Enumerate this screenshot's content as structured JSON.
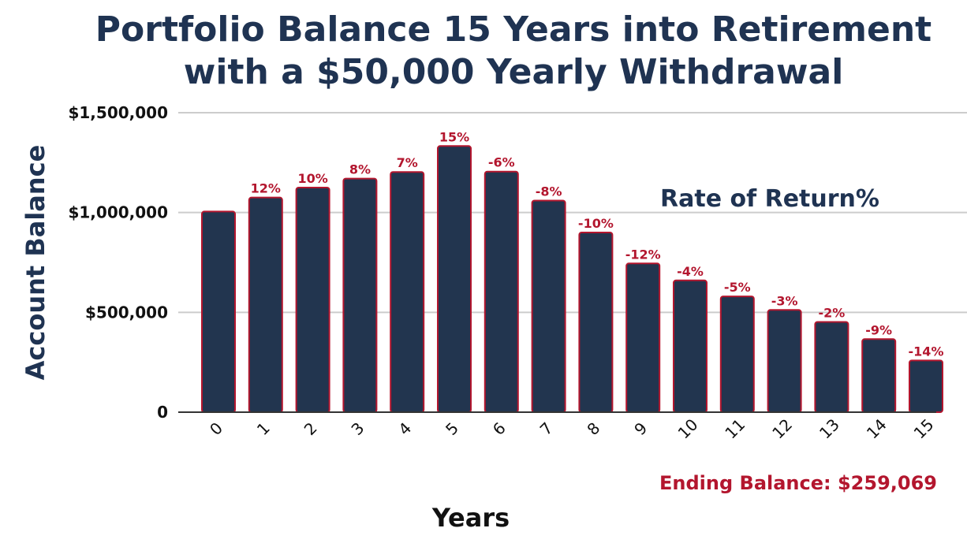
{
  "chart_data": {
    "type": "bar",
    "title_line1": "Portfolio Balance 15 Years into Retirement",
    "title_line2": "with a $50,000 Yearly Withdrawal",
    "xlabel": "Years",
    "ylabel": "Account Balance",
    "categories": [
      "0",
      "1",
      "2",
      "3",
      "4",
      "5",
      "6",
      "7",
      "8",
      "9",
      "10",
      "11",
      "12",
      "13",
      "14",
      "15"
    ],
    "values": [
      1005000,
      1075000,
      1125000,
      1170000,
      1203000,
      1333000,
      1205000,
      1060000,
      900000,
      745000,
      660000,
      580000,
      512000,
      452000,
      366000,
      259069
    ],
    "rate_labels": [
      "",
      "12%",
      "10%",
      "8%",
      "7%",
      "15%",
      "-6%",
      "-8%",
      "-10%",
      "-12%",
      "-4%",
      "-5%",
      "-3%",
      "-2%",
      "-9%",
      "-14%"
    ],
    "ylim": [
      0,
      1500000
    ],
    "yticks": [
      0,
      500000,
      1000000,
      1500000
    ],
    "ytick_labels": [
      "0",
      "$500,000",
      "$1,000,000",
      "$1,500,000"
    ],
    "grid": true,
    "rate_legend": "Rate of Return%",
    "ending_balance": "Ending Balance: $259,069",
    "colors": {
      "bar": "#22354f",
      "bar_edge": "#b3162e",
      "rate_text": "#b3162e",
      "title": "#1f3352",
      "grid": "#cccccc"
    }
  }
}
